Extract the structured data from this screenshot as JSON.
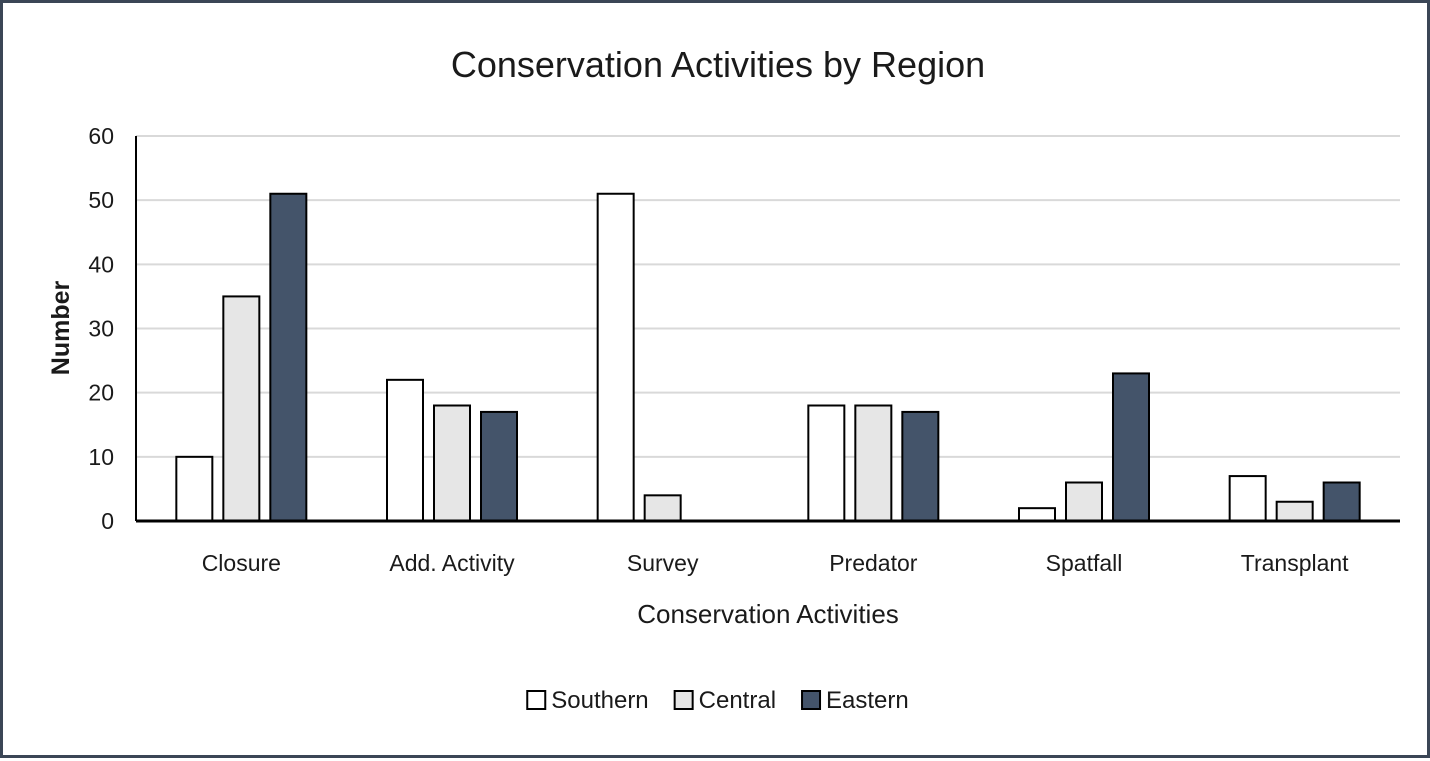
{
  "chart_data": {
    "type": "bar",
    "title": "Conservation Activities by Region",
    "xlabel": "Conservation Activities",
    "ylabel": "Number",
    "categories": [
      "Closure",
      "Add. Activity",
      "Survey",
      "Predator",
      "Spatfall",
      "Transplant"
    ],
    "series": [
      {
        "name": "Southern",
        "color": "#ffffff",
        "values": [
          10,
          22,
          51,
          18,
          2,
          7
        ]
      },
      {
        "name": "Central",
        "color": "#e6e6e6",
        "values": [
          35,
          18,
          4,
          18,
          6,
          3
        ]
      },
      {
        "name": "Eastern",
        "color": "#44546a",
        "values": [
          51,
          17,
          0,
          17,
          23,
          6
        ]
      }
    ],
    "ylim": [
      0,
      60
    ],
    "yticks": [
      0,
      10,
      20,
      30,
      40,
      50,
      60
    ],
    "grid": true,
    "legend_position": "bottom",
    "bar_outline_color": "#000000",
    "gridline_color": "#d9d9d9",
    "frame_color": "#3b4656"
  }
}
